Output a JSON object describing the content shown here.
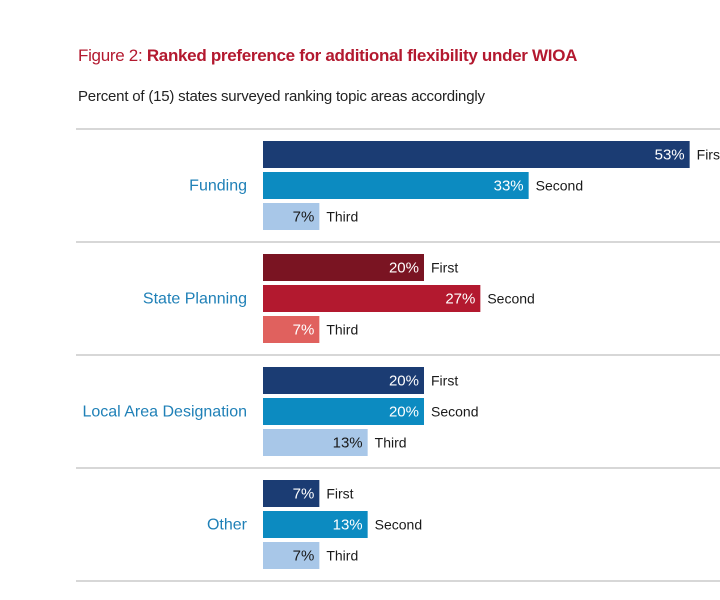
{
  "title": {
    "prefix": "Figure 2: ",
    "main": "Ranked preference for additional flexibility under WIOA"
  },
  "subtitle": "Percent of (15) states surveyed ranking topic areas accordingly",
  "colors": {
    "navy": "#1b3c73",
    "teal": "#0c8bc1",
    "lightblue": "#a8c7e8",
    "darkred": "#7a1422",
    "red": "#b3192f",
    "salmon": "#e0615e",
    "category_text": "#1f80b7",
    "separator": "#bfbfbf"
  },
  "chart_data": {
    "type": "bar",
    "orientation": "horizontal",
    "title": "Ranked preference for additional flexibility under WIOA",
    "subtitle": "Percent of (15) states surveyed ranking topic areas accordingly",
    "value_suffix": "%",
    "categories": [
      {
        "name": "Funding",
        "bars": [
          {
            "rank": "First",
            "value": 53,
            "color": "#1b3c73"
          },
          {
            "rank": "Second",
            "value": 33,
            "color": "#0c8bc1"
          },
          {
            "rank": "Third",
            "value": 7,
            "color": "#a8c7e8"
          }
        ]
      },
      {
        "name": "State Planning",
        "bars": [
          {
            "rank": "First",
            "value": 20,
            "color": "#7a1422"
          },
          {
            "rank": "Second",
            "value": 27,
            "color": "#b3192f"
          },
          {
            "rank": "Third",
            "value": 7,
            "color": "#e0615e"
          }
        ]
      },
      {
        "name": "Local Area Designation",
        "bars": [
          {
            "rank": "First",
            "value": 20,
            "color": "#1b3c73"
          },
          {
            "rank": "Second",
            "value": 20,
            "color": "#0c8bc1"
          },
          {
            "rank": "Third",
            "value": 13,
            "color": "#a8c7e8"
          }
        ]
      },
      {
        "name": "Other",
        "bars": [
          {
            "rank": "First",
            "value": 7,
            "color": "#1b3c73"
          },
          {
            "rank": "Second",
            "value": 13,
            "color": "#0c8bc1"
          },
          {
            "rank": "Third",
            "value": 7,
            "color": "#a8c7e8"
          }
        ]
      }
    ]
  }
}
